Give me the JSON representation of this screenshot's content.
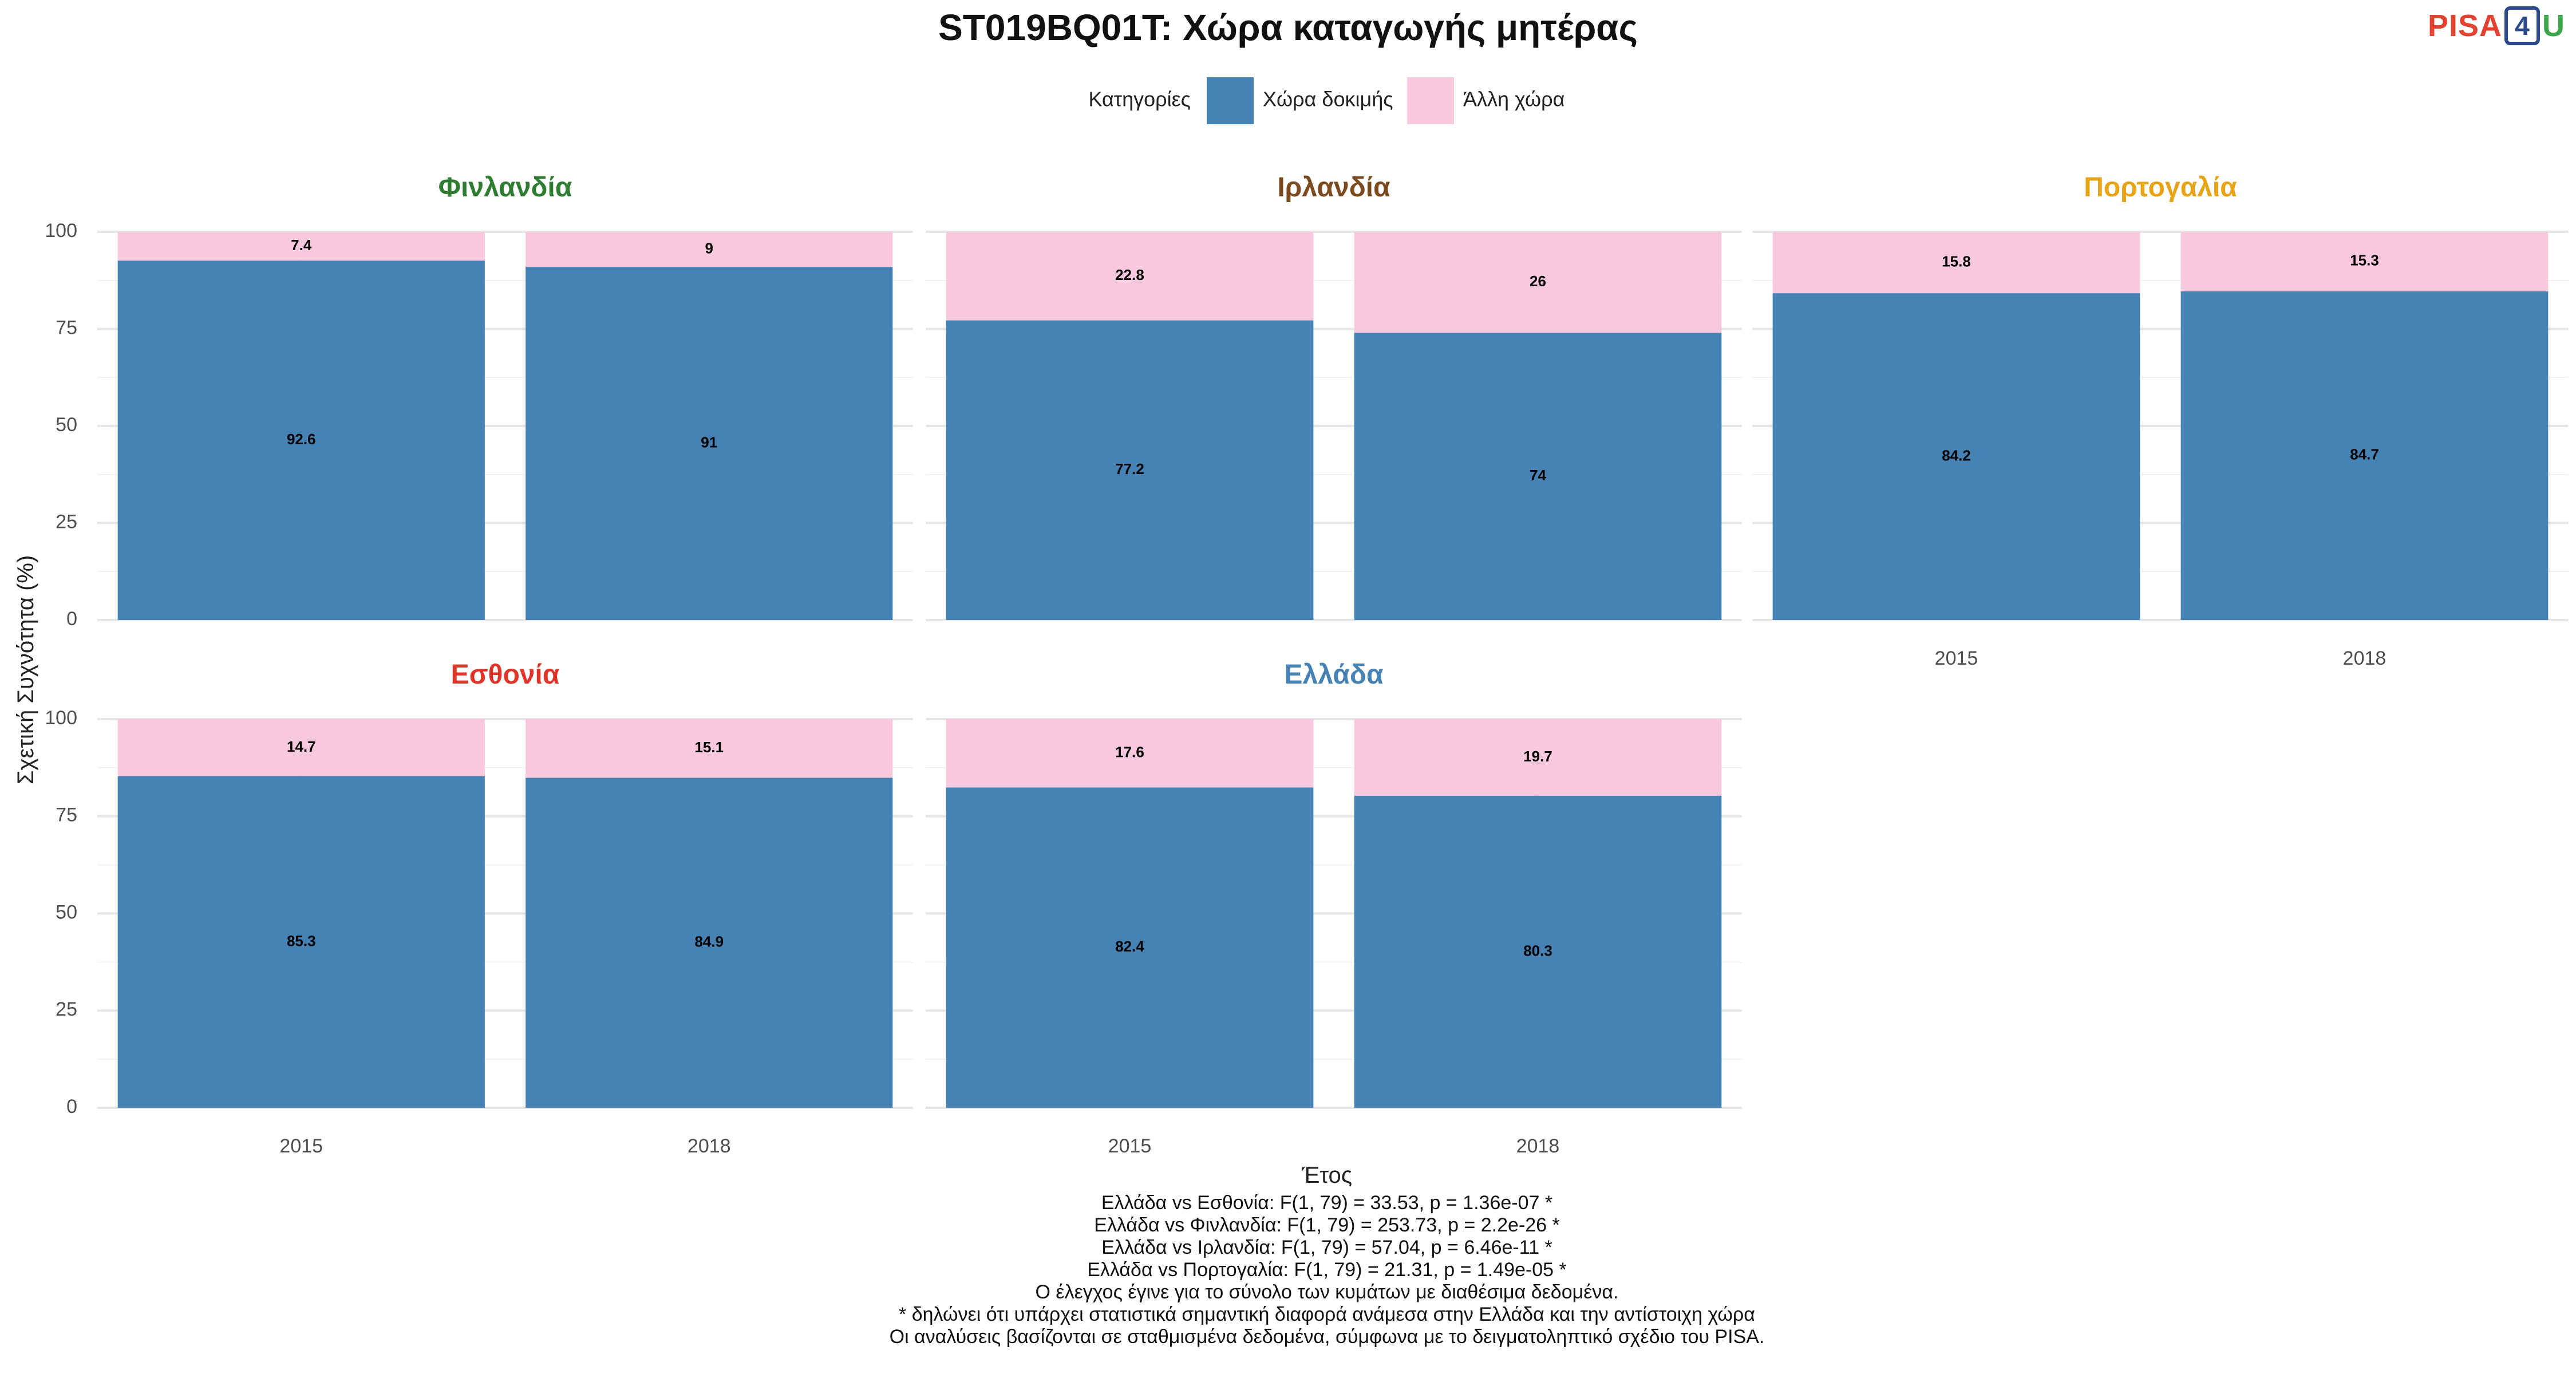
{
  "logo": {
    "part1": "PISA",
    "part2": "4",
    "part3": "U"
  },
  "chart_data": {
    "type": "bar",
    "stacked": true,
    "title": "ST019BQ01T: Χώρα καταγωγής μητέρας",
    "xlabel": "Έτος",
    "ylabel": "Σχετική Συχνότητα (%)",
    "ylim": [
      0,
      100
    ],
    "yticks": [
      0,
      25,
      50,
      75,
      100
    ],
    "categories": [
      "2015",
      "2018"
    ],
    "legend": {
      "title": "Κατηγορίες",
      "position": "top",
      "entries": [
        {
          "name": "Χώρα δοκιμής",
          "color": "#4682b4"
        },
        {
          "name": "Άλλη χώρα",
          "color": "#f8c8dc"
        }
      ]
    },
    "grid": true,
    "panels": [
      {
        "name": "Φινλανδία",
        "color": "#2e7d32",
        "series": [
          {
            "name": "Χώρα δοκιμής",
            "values": [
              92.6,
              91
            ]
          },
          {
            "name": "Άλλη χώρα",
            "values": [
              7.4,
              9
            ]
          }
        ]
      },
      {
        "name": "Ιρλανδία",
        "color": "#7b4a1e",
        "series": [
          {
            "name": "Χώρα δοκιμής",
            "values": [
              77.2,
              74
            ]
          },
          {
            "name": "Άλλη χώρα",
            "values": [
              22.8,
              26
            ]
          }
        ]
      },
      {
        "name": "Πορτογαλία",
        "color": "#e8a317",
        "series": [
          {
            "name": "Χώρα δοκιμής",
            "values": [
              84.2,
              84.7
            ]
          },
          {
            "name": "Άλλη χώρα",
            "values": [
              15.8,
              15.3
            ]
          }
        ]
      },
      {
        "name": "Εσθονία",
        "color": "#e0352b",
        "series": [
          {
            "name": "Χώρα δοκιμής",
            "values": [
              85.3,
              84.9
            ]
          },
          {
            "name": "Άλλη χώρα",
            "values": [
              14.7,
              15.1
            ]
          }
        ]
      },
      {
        "name": "Ελλάδα",
        "color": "#4682b4",
        "series": [
          {
            "name": "Χώρα δοκιμής",
            "values": [
              82.4,
              80.3
            ]
          },
          {
            "name": "Άλλη χώρα",
            "values": [
              17.6,
              19.7
            ]
          }
        ]
      }
    ],
    "caption": [
      "Ελλάδα vs Εσθονία: F(1, 79) = 33.53, p = 1.36e-07 *",
      "Ελλάδα vs Φινλανδία: F(1, 79) = 253.73, p = 2.2e-26 *",
      "Ελλάδα vs Ιρλανδία: F(1, 79) = 57.04, p = 6.46e-11 *",
      "Ελλάδα vs Πορτογαλία: F(1, 79) = 21.31, p = 1.49e-05 *",
      "Ο έλεγχος έγινε για το σύνολο των κυμάτων με διαθέσιμα δεδομένα.",
      "* δηλώνει ότι υπάρχει στατιστικά σημαντική διαφορά ανάμεσα στην Ελλάδα και την αντίστοιχη χώρα",
      "Οι αναλύσεις βασίζονται σε σταθμισμένα δεδομένα, σύμφωνα με το δειγματοληπτικό σχέδιο του PISA."
    ]
  }
}
